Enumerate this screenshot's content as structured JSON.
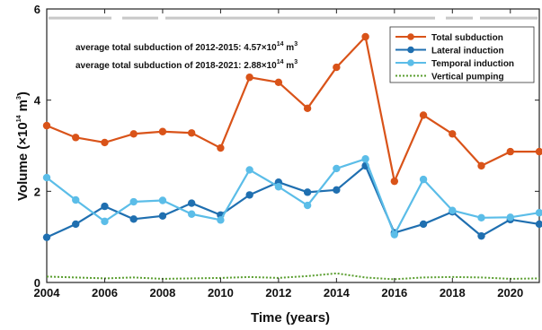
{
  "chart_data": {
    "type": "line",
    "xlabel": "Time (years)",
    "ylabel_main": "Volume (×10",
    "ylabel_exp": "14",
    "ylabel_unit": " m",
    "ylabel_unit_exp": "3",
    ")": ")",
    "xlim": [
      2004,
      2021
    ],
    "ylim": [
      0,
      6
    ],
    "xticks": [
      "2004",
      "2006",
      "2008",
      "2010",
      "2012",
      "2014",
      "2016",
      "2018",
      "2020"
    ],
    "yticks": [
      "0",
      "2",
      "4",
      "6"
    ],
    "grid": false,
    "legend_position": "top-right",
    "annotations": [
      {
        "prefix": "average total subduction of 2012-2015: 4.57",
        "times": "×10",
        "exp": "14",
        "unit": " m",
        "unit_exp": "3"
      },
      {
        "prefix": "average total subduction of 2018-2021: 2.88",
        "times": "×10",
        "exp": "14",
        "unit": " m",
        "unit_exp": "3"
      }
    ],
    "x": [
      2004,
      2005,
      2006,
      2007,
      2008,
      2009,
      2010,
      2011,
      2012,
      2013,
      2014,
      2015,
      2016,
      2017,
      2018,
      2019,
      2020,
      2021
    ],
    "series": [
      {
        "name": "Total subduction",
        "color": "#d95319",
        "style": "solid",
        "marker": true,
        "values": [
          3.44,
          3.18,
          3.07,
          3.26,
          3.31,
          3.28,
          2.95,
          4.5,
          4.39,
          3.82,
          4.72,
          5.39,
          2.22,
          3.67,
          3.26,
          2.56,
          2.87,
          2.87
        ]
      },
      {
        "name": "Lateral induction",
        "color": "#1f6fb0",
        "style": "solid",
        "marker": true,
        "values": [
          0.99,
          1.28,
          1.67,
          1.39,
          1.46,
          1.74,
          1.48,
          1.92,
          2.2,
          1.98,
          2.03,
          2.56,
          1.09,
          1.28,
          1.55,
          1.02,
          1.38,
          1.28
        ]
      },
      {
        "name": "Temporal induction",
        "color": "#5bbde8",
        "style": "solid",
        "marker": true,
        "values": [
          2.3,
          1.81,
          1.34,
          1.77,
          1.8,
          1.5,
          1.37,
          2.47,
          2.1,
          1.69,
          2.5,
          2.71,
          1.05,
          2.26,
          1.58,
          1.42,
          1.43,
          1.53
        ]
      },
      {
        "name": "Vertical pumping",
        "color": "#5a9e2f",
        "style": "dotted",
        "marker": false,
        "values": [
          0.13,
          0.11,
          0.09,
          0.11,
          0.08,
          0.09,
          0.1,
          0.12,
          0.1,
          0.14,
          0.2,
          0.11,
          0.07,
          0.11,
          0.12,
          0.11,
          0.08,
          0.09
        ]
      }
    ],
    "reference_line": {
      "y": 5.8,
      "color": "#c8c8c8"
    }
  }
}
